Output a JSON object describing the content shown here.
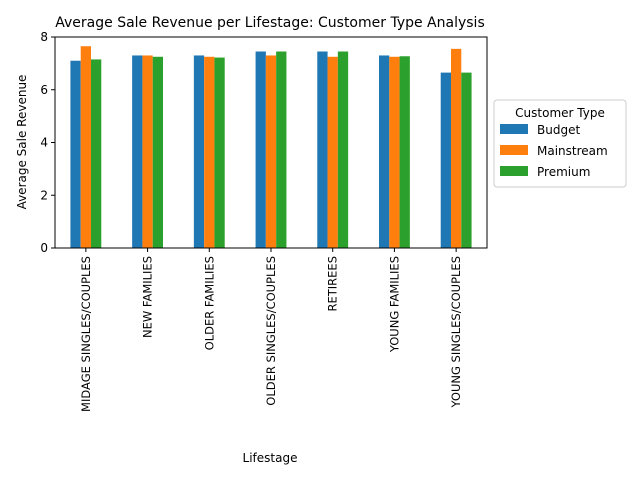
{
  "chart_data": {
    "type": "bar",
    "title": "Average Sale Revenue per Lifestage: Customer Type Analysis",
    "xlabel": "Lifestage",
    "ylabel": "Average Sale Revenue",
    "ylim": [
      0,
      8
    ],
    "yticks": [
      "0",
      "2",
      "4",
      "6",
      "8"
    ],
    "grid": false,
    "legend_position": "center-right",
    "legend_title": "Customer Type",
    "categories": [
      "MIDAGE SINGLES/COUPLES",
      "NEW FAMILIES",
      "OLDER FAMILIES",
      "OLDER SINGLES/COUPLES",
      "RETIREES",
      "YOUNG FAMILIES",
      "YOUNG SINGLES/COUPLES"
    ],
    "series": [
      {
        "name": "Budget",
        "color": "#1f77b4",
        "values": [
          7.1,
          7.3,
          7.3,
          7.45,
          7.45,
          7.3,
          6.65
        ]
      },
      {
        "name": "Mainstream",
        "color": "#ff7f0e",
        "values": [
          7.65,
          7.3,
          7.25,
          7.3,
          7.25,
          7.25,
          7.55
        ]
      },
      {
        "name": "Premium",
        "color": "#2ca02c",
        "values": [
          7.15,
          7.25,
          7.22,
          7.45,
          7.45,
          7.27,
          6.65
        ]
      }
    ]
  }
}
